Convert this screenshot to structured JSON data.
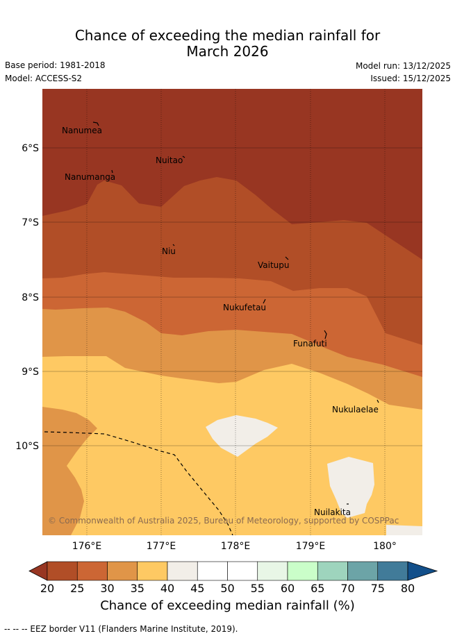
{
  "header": {
    "title_line1": "Chance of exceeding the median rainfall for",
    "title_line2": "March 2026",
    "base_period": "Base period: 1981-2018",
    "model": "Model: ACCESS-S2",
    "model_run": "Model run: 13/12/2025",
    "issued": "Issued: 15/12/2025"
  },
  "map": {
    "lat_labels": [
      "6°S",
      "7°S",
      "8°S",
      "9°S",
      "10°S"
    ],
    "lon_labels": [
      "176°E",
      "177°E",
      "178°E",
      "179°E",
      "180°"
    ],
    "places": [
      "Nanumea",
      "Nuitao",
      "Nanumanga",
      "Niu",
      "Vaitupu",
      "Nukufetau",
      "Funafuti",
      "Nukulaelae",
      "Nuilakita"
    ],
    "copyright": "© Commonwealth of Australia 2025, Bureau of Meteorology, supported by COSPPac"
  },
  "colorbar": {
    "ticks": [
      "20",
      "25",
      "30",
      "35",
      "40",
      "45",
      "50",
      "55",
      "60",
      "65",
      "70",
      "75",
      "80"
    ],
    "label": "Chance of exceeding median rainfall (%)",
    "colors": [
      "#983622",
      "#b14e27",
      "#cc6634",
      "#e09548",
      "#fec963",
      "#f2eee8",
      "#ffffff",
      "#ffffff",
      "#e8f6e6",
      "#cafec9",
      "#9ed4bd",
      "#6ca4a7",
      "#417b99",
      "#124f8a"
    ]
  },
  "footer": {
    "eez_note": "--  --  -- EEZ border V11 (Flanders Marine Institute, 2019)."
  }
}
